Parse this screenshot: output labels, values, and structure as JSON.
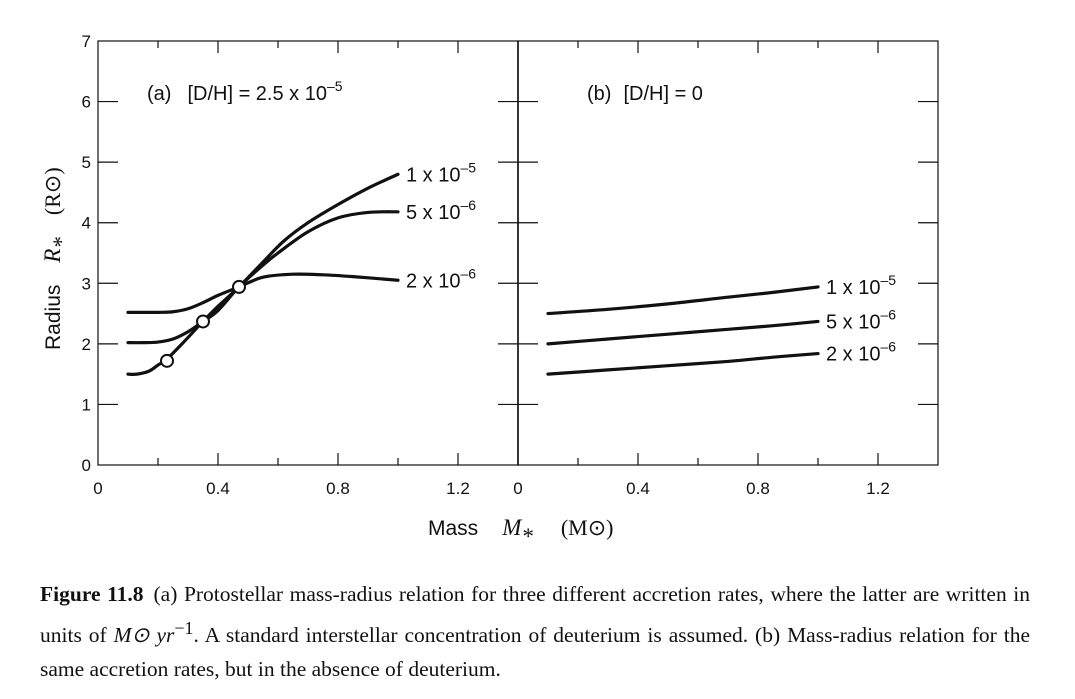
{
  "chart_data": [
    {
      "type": "line",
      "panel_label": "(a)",
      "title_prefix": "[D/H]  =  2.5 x 10",
      "title_exponent": "–5",
      "x_ticks": [
        "0",
        "0.4",
        "0.8",
        "1.2"
      ],
      "y_ticks": [
        "0",
        "1",
        "2",
        "3",
        "4",
        "5",
        "6",
        "7"
      ],
      "xlim": [
        0,
        1.4
      ],
      "ylim": [
        0,
        7
      ],
      "series": [
        {
          "name": "1 x 10–5",
          "label_base": "1 x 10",
          "label_exp": "–5",
          "x": [
            0.1,
            0.13,
            0.17,
            0.2,
            0.23,
            0.28,
            0.35,
            0.4,
            0.47,
            0.55,
            0.62,
            0.7,
            0.8,
            0.9,
            1.0
          ],
          "y": [
            1.5,
            1.5,
            1.55,
            1.65,
            1.75,
            2.0,
            2.37,
            2.62,
            2.94,
            3.35,
            3.7,
            4.0,
            4.3,
            4.57,
            4.8
          ]
        },
        {
          "name": "5 x 10–6",
          "label_base": "5 x 10",
          "label_exp": "–6",
          "x": [
            0.1,
            0.15,
            0.2,
            0.25,
            0.3,
            0.35,
            0.4,
            0.47,
            0.55,
            0.6,
            0.7,
            0.8,
            0.9,
            1.0
          ],
          "y": [
            2.02,
            2.02,
            2.03,
            2.08,
            2.2,
            2.37,
            2.55,
            2.94,
            3.3,
            3.5,
            3.85,
            4.08,
            4.17,
            4.18
          ]
        },
        {
          "name": "2 x 10–6",
          "label_base": "2 x 10",
          "label_exp": "–6",
          "x": [
            0.1,
            0.2,
            0.25,
            0.3,
            0.35,
            0.4,
            0.47,
            0.55,
            0.65,
            0.75,
            0.85,
            1.0
          ],
          "y": [
            2.52,
            2.52,
            2.53,
            2.58,
            2.68,
            2.8,
            2.94,
            3.1,
            3.15,
            3.14,
            3.11,
            3.05
          ]
        }
      ],
      "markers": {
        "x": [
          0.23,
          0.35,
          0.47
        ],
        "y": [
          1.72,
          2.37,
          2.94
        ]
      }
    },
    {
      "type": "line",
      "panel_label": "(b)",
      "title_prefix": "[D/H]  =  0",
      "title_exponent": "",
      "x_ticks": [
        "0",
        "0.4",
        "0.8",
        "1.2"
      ],
      "xlim": [
        0,
        1.4
      ],
      "ylim": [
        0,
        7
      ],
      "series": [
        {
          "name": "1 x 10–5",
          "label_base": "1 x 10",
          "label_exp": "–5",
          "x": [
            0.1,
            0.3,
            0.5,
            0.7,
            0.85,
            1.0
          ],
          "y": [
            2.5,
            2.57,
            2.66,
            2.77,
            2.85,
            2.94
          ]
        },
        {
          "name": "5 x 10–6",
          "label_base": "5 x 10",
          "label_exp": "–6",
          "x": [
            0.1,
            0.3,
            0.5,
            0.7,
            0.85,
            1.0
          ],
          "y": [
            2.0,
            2.08,
            2.16,
            2.24,
            2.3,
            2.37
          ]
        },
        {
          "name": "2 x 10–6",
          "label_base": "2 x 10",
          "label_exp": "–6",
          "x": [
            0.1,
            0.3,
            0.5,
            0.7,
            0.85,
            1.0
          ],
          "y": [
            1.5,
            1.57,
            1.64,
            1.71,
            1.78,
            1.84
          ]
        }
      ]
    }
  ],
  "axes": {
    "x_title": "Mass",
    "x_symbol": "M",
    "x_symbol_sub": "*",
    "x_unit": "(M⊙)",
    "y_title": "Radius",
    "y_symbol": "R",
    "y_symbol_sub": "*",
    "y_unit": "(R⊙)"
  },
  "caption": {
    "label": "Figure 11.8",
    "text_1": "(a) Protostellar mass-radius relation for three different accretion rates, where the latter are written in units of ",
    "unit_math": "M⊙ yr",
    "unit_exp": "−1",
    "text_2": ".  A standard interstellar concentration of deuterium is assumed. (b) Mass-radius relation for the same accretion rates, but in the absence of deuterium."
  }
}
